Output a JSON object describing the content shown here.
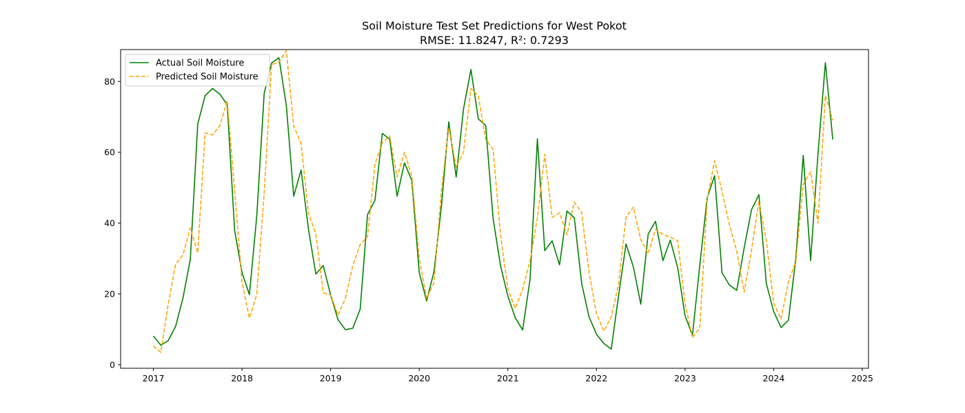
{
  "chart_data": {
    "type": "line",
    "title": "Soil Moisture Test Set Predictions for West Pokot",
    "subtitle": "RMSE: 11.8247, R²: 0.7293",
    "xlabel": "",
    "ylabel": "",
    "x_start": "2017-01",
    "x_step": "monthly",
    "xlim": [
      2016.63,
      2025.07
    ],
    "ylim": [
      -1,
      89
    ],
    "x_ticks": [
      2017,
      2018,
      2019,
      2020,
      2021,
      2022,
      2023,
      2024,
      2025
    ],
    "y_ticks": [
      0,
      20,
      40,
      60,
      80
    ],
    "grid": false,
    "legend_position": "top-left",
    "series": [
      {
        "name": "Actual Soil Moisture",
        "color": "#008000",
        "style": "solid",
        "values": [
          8.1,
          5.5,
          6.8,
          10.8,
          18.8,
          29.8,
          67.9,
          76.0,
          78.0,
          76.4,
          73.4,
          37.9,
          26.0,
          19.8,
          42.1,
          76.6,
          85.2,
          86.7,
          73.2,
          47.6,
          55.0,
          38.2,
          25.6,
          28.0,
          19.7,
          12.7,
          9.9,
          10.3,
          15.7,
          42.4,
          46.4,
          65.3,
          63.7,
          47.6,
          57.0,
          52.0,
          26.0,
          18.0,
          26.3,
          44.7,
          68.6,
          53.0,
          72.3,
          83.4,
          69.4,
          67.6,
          41.3,
          28.0,
          19.4,
          13.3,
          9.8,
          24.0,
          63.8,
          32.2,
          35.0,
          28.2,
          43.4,
          41.5,
          22.9,
          13.5,
          8.6,
          6.0,
          4.4,
          19.6,
          34.1,
          27.6,
          17.1,
          36.9,
          40.5,
          29.4,
          35.2,
          27.4,
          13.8,
          8.3,
          28.3,
          47.2,
          53.4,
          26.0,
          22.5,
          21.0,
          33.0,
          43.8,
          48.0,
          23.0,
          15.0,
          10.5,
          12.6,
          30.1,
          59.1,
          29.4,
          59.6,
          85.3,
          63.6
        ]
      },
      {
        "name": "Predicted Soil Moisture",
        "color": "#FFA500",
        "style": "dashed",
        "values": [
          5.3,
          3.5,
          17.0,
          28.3,
          31.0,
          38.6,
          31.6,
          65.5,
          64.9,
          67.5,
          74.6,
          49.2,
          23.4,
          13.2,
          19.9,
          48.6,
          84.7,
          85.5,
          88.7,
          67.5,
          62.4,
          42.7,
          37.0,
          20.3,
          19.7,
          14.0,
          18.7,
          28.0,
          33.9,
          36.2,
          56.6,
          62.7,
          64.6,
          53.0,
          60.0,
          53.2,
          30.0,
          18.7,
          23.1,
          49.2,
          66.9,
          55.8,
          60.1,
          78.0,
          75.9,
          63.7,
          60.8,
          36.7,
          21.4,
          15.9,
          21.3,
          29.3,
          41.5,
          59.4,
          41.6,
          42.9,
          36.7,
          45.9,
          43.0,
          26.0,
          14.5,
          9.5,
          13.5,
          22.8,
          41.7,
          44.5,
          35.3,
          31.4,
          38.2,
          36.8,
          36.0,
          35.0,
          17.3,
          7.6,
          10.5,
          46.8,
          57.6,
          49.0,
          39.6,
          32.0,
          20.5,
          32.4,
          46.1,
          35.1,
          17.4,
          12.9,
          23.5,
          29.1,
          51.0,
          54.5,
          40.0,
          76.0,
          69.0
        ]
      }
    ]
  }
}
